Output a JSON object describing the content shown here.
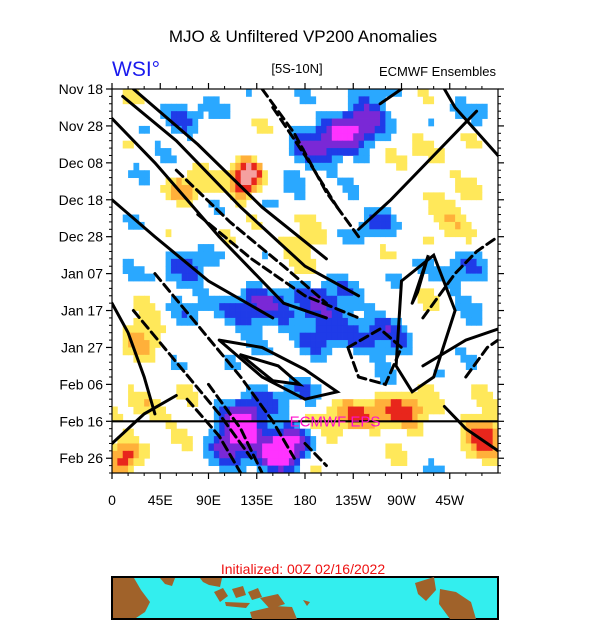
{
  "chart_data": {
    "type": "heatmap",
    "title": "MJO & Unfiltered VP200 Anomalies",
    "logo_text": "WSI°",
    "region_label": "[5S-10N]",
    "source_label": "ECMWF Ensembles",
    "forecast_label": "ECMWF EPS",
    "initialized_label": "Initialized: 00Z 02/16/2022",
    "x_tick_labels": [
      "0",
      "45E",
      "90E",
      "135E",
      "180",
      "135W",
      "90W",
      "45W"
    ],
    "x_tick_degrees": [
      0,
      45,
      90,
      135,
      180,
      225,
      270,
      315
    ],
    "x_range_degrees": [
      0,
      360
    ],
    "y_tick_labels": [
      "Nov 18",
      "Nov 28",
      "Dec 08",
      "Dec 18",
      "Dec 28",
      "Jan 07",
      "Jan 17",
      "Jan 27",
      "Feb 06",
      "Feb 16",
      "Feb 26"
    ],
    "y_tick_days": [
      0,
      10,
      20,
      30,
      40,
      50,
      60,
      70,
      80,
      90,
      100
    ],
    "y_range_days": [
      0,
      104
    ],
    "forecast_start_day": 90,
    "colors": {
      "strong_negative": "#ff33ff",
      "negative": "#7a28d6",
      "weak_negative": "#1f3be8",
      "slight_negative": "#2aa8ff",
      "neutral": "#ffffff",
      "slight_positive": "#ffe85a",
      "positive": "#ffb03a",
      "strong_positive": "#e8261c",
      "extreme_positive": "#f5a0a0",
      "forecast_line": "#ff10cc",
      "map_ocean": "#33eeee",
      "map_land": "#a0622a",
      "logo": "#1a1aee",
      "initialized_text": "#ee1111"
    }
  }
}
